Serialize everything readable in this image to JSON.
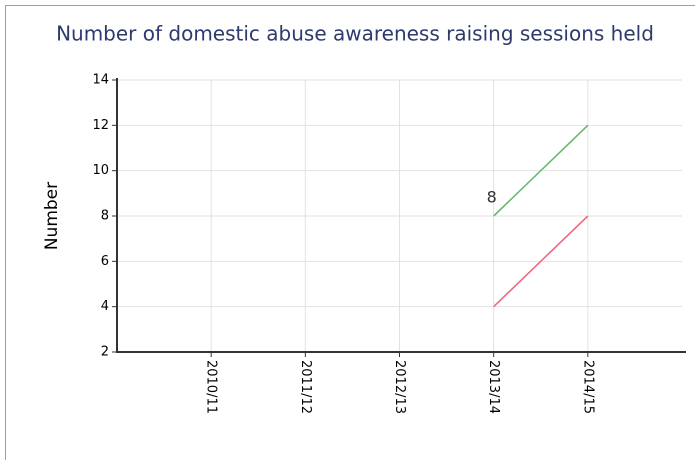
{
  "chart_data": {
    "type": "line",
    "title": "Number of domestic abuse awareness raising sessions held",
    "y_label": "Number",
    "categories": [
      "2010/11",
      "2011/12",
      "2012/13",
      "2013/14",
      "2014/15"
    ],
    "series": [
      {
        "color": "#6ab86a",
        "values": [
          null,
          null,
          null,
          8,
          12
        ],
        "value_labels": [
          null,
          null,
          null,
          "8",
          null
        ]
      },
      {
        "color": "#f06b7f",
        "values": [
          null,
          null,
          null,
          4,
          8
        ]
      }
    ],
    "ylim": [
      2,
      14
    ],
    "yticks": [
      2,
      4,
      6,
      8,
      10,
      12,
      14
    ],
    "grid": true
  }
}
